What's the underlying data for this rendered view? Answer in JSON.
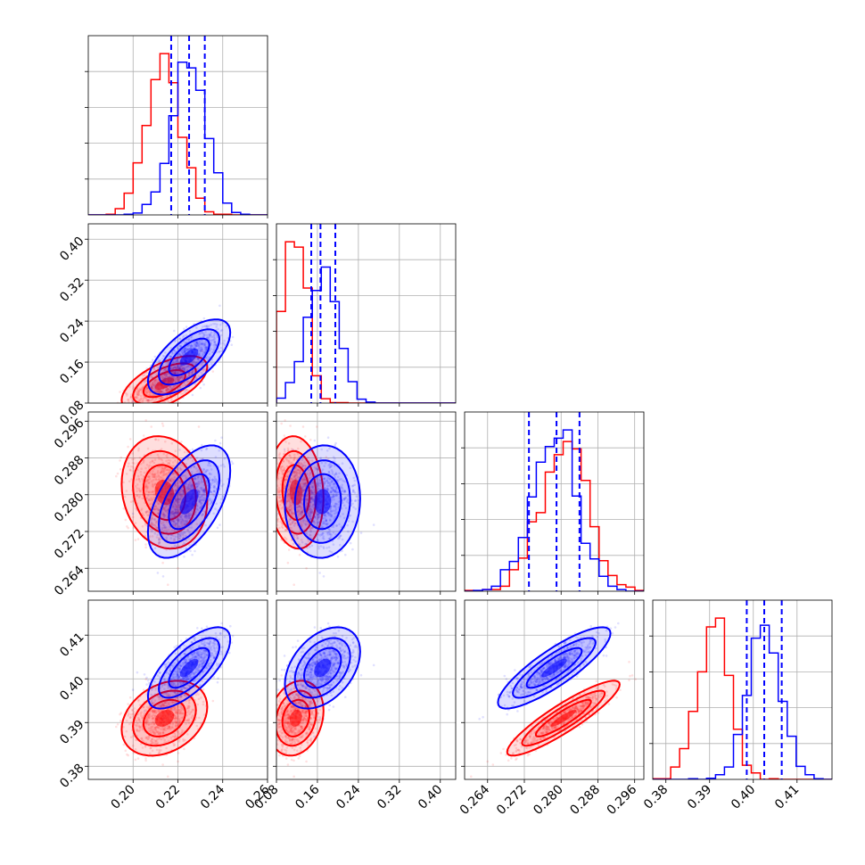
{
  "chart_data": {
    "type": "corner",
    "title": "",
    "params": [
      {
        "range": [
          0.18,
          0.26
        ],
        "ticks": [
          0.2,
          0.22,
          0.24,
          0.26
        ],
        "tick_labels": [
          "0.20",
          "0.22",
          "0.24",
          "0.26"
        ],
        "label": ""
      },
      {
        "range": [
          0.08,
          0.43
        ],
        "ticks": [
          0.08,
          0.16,
          0.24,
          0.32,
          0.4
        ],
        "tick_labels": [
          "0.08",
          "0.16",
          "0.24",
          "0.32",
          "0.40"
        ],
        "label": ""
      },
      {
        "range": [
          0.259,
          0.298
        ],
        "ticks": [
          0.264,
          0.272,
          0.28,
          0.288,
          0.296
        ],
        "tick_labels": [
          "0.264",
          "0.272",
          "0.280",
          "0.288",
          "0.296"
        ],
        "label": ""
      },
      {
        "range": [
          0.377,
          0.418
        ],
        "ticks": [
          0.38,
          0.39,
          0.4,
          0.41
        ],
        "tick_labels": [
          "0.38",
          "0.39",
          "0.40",
          "0.41"
        ],
        "label": ""
      }
    ],
    "series": [
      {
        "color": "#ff0000",
        "mean": [
          0.214,
          0.118,
          0.2805,
          0.391
        ],
        "sd": [
          0.0078,
          0.022,
          0.005,
          0.0035
        ],
        "corr": [
          [
            1,
            0.6,
            -0.15,
            0.3
          ],
          [
            0.6,
            1,
            -0.1,
            0.2
          ],
          [
            -0.15,
            -0.1,
            1,
            0.9
          ],
          [
            0.3,
            0.2,
            0.9,
            1
          ]
        ],
        "quantile_lines": []
      },
      {
        "color": "#0000ff",
        "mean": [
          0.225,
          0.17,
          0.2785,
          0.4025
        ],
        "sd": [
          0.0075,
          0.03,
          0.005,
          0.0038
        ],
        "corr": [
          [
            1,
            0.65,
            0.55,
            0.7
          ],
          [
            0.65,
            1,
            0.05,
            0.4
          ],
          [
            0.55,
            0.05,
            1,
            0.85
          ],
          [
            0.7,
            0.4,
            0.85,
            1
          ]
        ],
        "quantile_lines": [
          [
            0.217,
            0.225,
            0.232
          ],
          [
            0.148,
            0.166,
            0.195
          ],
          [
            0.273,
            0.279,
            0.284
          ],
          [
            0.3985,
            0.4025,
            0.4065
          ]
        ]
      }
    ],
    "histogram_bins": 20,
    "grid": true,
    "diagonal_y_ticks": 4
  }
}
